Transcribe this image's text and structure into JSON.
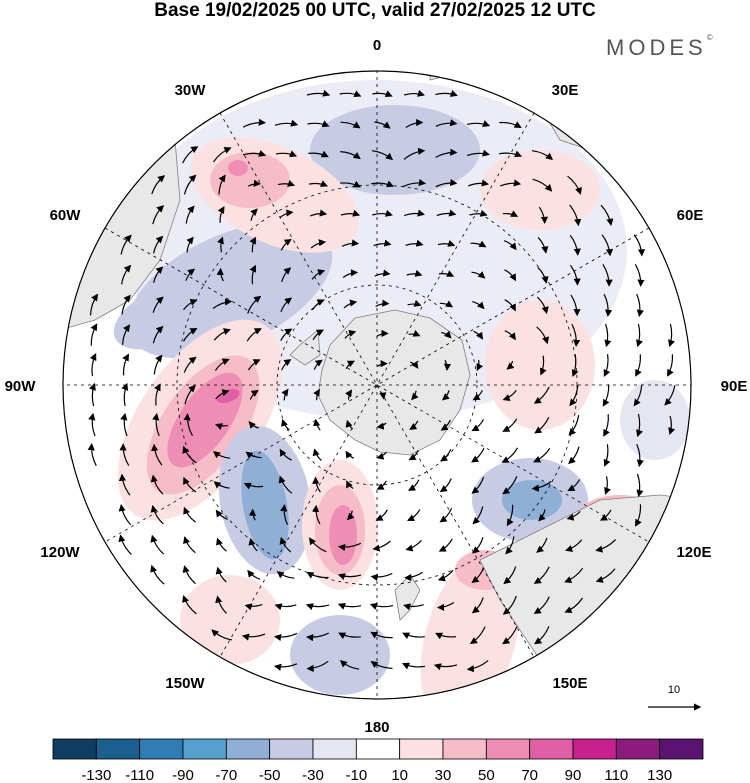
{
  "title": "Base 19/02/2025 00 UTC, valid 27/02/2025 12 UTC",
  "brand": "MODES",
  "brand_mark": "©",
  "map": {
    "projection": "south-polar-stereographic",
    "longitude_labels": {
      "top": "0",
      "top_right": "30E",
      "upper_right": "60E",
      "right": "90E",
      "lower_right": "120E",
      "bottom_right": "150E",
      "bottom": "180",
      "bottom_left": "150W",
      "lower_left": "120W",
      "left": "90W",
      "upper_left": "60W",
      "top_left": "30W"
    },
    "reference_vector_label": "10",
    "colors": {
      "land": "#e8e8e8",
      "coast": "#808080",
      "grid": "#000000",
      "neg_light": "#e6e6f3",
      "neg_mid": "#c7cbe4",
      "neg_strong": "#8fafd6",
      "neg_deep": "#6f9fd0",
      "pos_light": "#fbe1e1",
      "pos_mid": "#f6bcc7",
      "pos_strong": "#ee8eb5",
      "pos_deep": "#e05fa5"
    }
  },
  "colorbar": {
    "labels": [
      "-130",
      "-110",
      "-90",
      "-70",
      "-50",
      "-30",
      "-10",
      "10",
      "30",
      "50",
      "70",
      "90",
      "110",
      "130"
    ],
    "colors": [
      "#0d3d60",
      "#1b5f8e",
      "#2f7db5",
      "#55a0cc",
      "#8fafd6",
      "#c7cbe4",
      "#e6e6f3",
      "#ffffff",
      "#fbe1e1",
      "#f6bcc7",
      "#ee8eb5",
      "#e05fa5",
      "#c8208f",
      "#8c1b7e",
      "#5a1370"
    ]
  }
}
